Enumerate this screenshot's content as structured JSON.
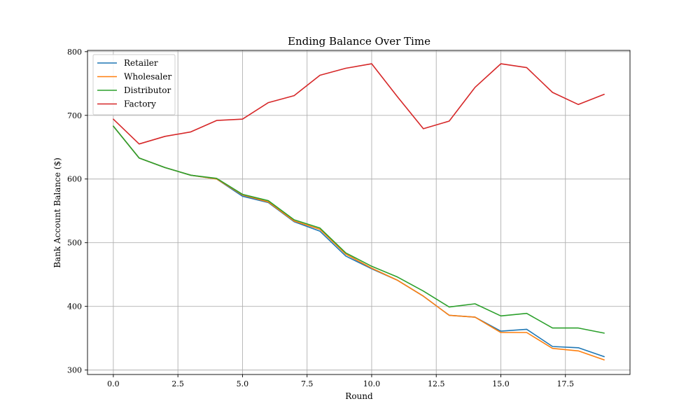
{
  "chart_data": {
    "type": "line",
    "title": "Ending Balance Over Time",
    "xlabel": "Round",
    "ylabel": "Bank Account Balance ($)",
    "xlim": [
      -1,
      20
    ],
    "ylim": [
      293,
      802
    ],
    "xticks": [
      0.0,
      2.5,
      5.0,
      7.5,
      10.0,
      12.5,
      15.0,
      17.5
    ],
    "xtick_labels": [
      "0.0",
      "2.5",
      "5.0",
      "7.5",
      "10.0",
      "12.5",
      "15.0",
      "17.5"
    ],
    "yticks": [
      300,
      400,
      500,
      600,
      700,
      800
    ],
    "ytick_labels": [
      "300",
      "400",
      "500",
      "600",
      "700",
      "800"
    ],
    "grid": true,
    "legend_position": "top-left",
    "x": [
      0,
      1,
      2,
      3,
      4,
      5,
      6,
      7,
      8,
      9,
      10,
      11,
      12,
      13,
      14,
      15,
      16,
      17,
      18,
      19
    ],
    "series": [
      {
        "name": "Retailer",
        "color": "#1f77b4",
        "values": [
          683,
          633,
          618,
          606,
          600,
          573,
          563,
          533,
          518,
          479,
          459,
          441,
          416,
          386,
          383,
          361,
          364,
          337,
          335,
          321
        ]
      },
      {
        "name": "Wholesaler",
        "color": "#ff7f0e",
        "values": [
          683,
          633,
          618,
          606,
          600,
          575,
          564,
          534,
          521,
          482,
          460,
          441,
          416,
          386,
          383,
          359,
          359,
          334,
          330,
          316
        ]
      },
      {
        "name": "Distributor",
        "color": "#2ca02c",
        "values": [
          683,
          633,
          618,
          606,
          601,
          576,
          566,
          536,
          523,
          484,
          463,
          446,
          424,
          399,
          404,
          385,
          389,
          366,
          366,
          358
        ]
      },
      {
        "name": "Factory",
        "color": "#d62728",
        "values": [
          694,
          655,
          667,
          674,
          692,
          694,
          720,
          731,
          763,
          774,
          781,
          729,
          679,
          691,
          744,
          781,
          775,
          736,
          717,
          733
        ]
      }
    ]
  }
}
